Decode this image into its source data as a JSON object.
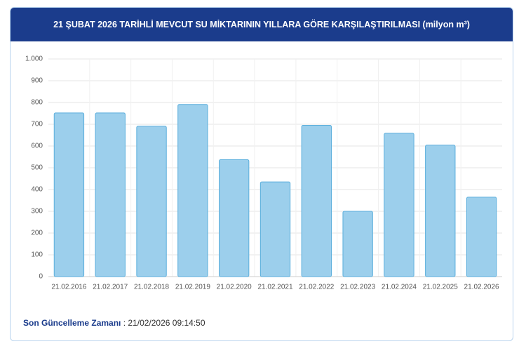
{
  "chart_data": {
    "type": "bar",
    "title": "21 ŞUBAT 2026 TARİHLİ MEVCUT SU MİKTARININ YILLARA GÖRE KARŞILAŞTIRILMASI (milyon m³)",
    "categories": [
      "21.02.2016",
      "21.02.2017",
      "21.02.2018",
      "21.02.2019",
      "21.02.2020",
      "21.02.2021",
      "21.02.2022",
      "21.02.2023",
      "21.02.2024",
      "21.02.2025",
      "21.02.2026"
    ],
    "values": [
      752,
      752,
      691,
      791,
      537,
      435,
      695,
      300,
      659,
      604,
      365
    ],
    "color": "#9ccfec",
    "ylim": [
      0,
      1000
    ],
    "yticks": [
      0,
      100,
      200,
      300,
      400,
      500,
      600,
      700,
      800,
      900,
      {
        "value": 1000,
        "label": "1.000"
      }
    ],
    "grid": true
  },
  "footer": {
    "label": "Son Güncelleme Zamanı",
    "value": ": 21/02/2026 09:14:50"
  }
}
